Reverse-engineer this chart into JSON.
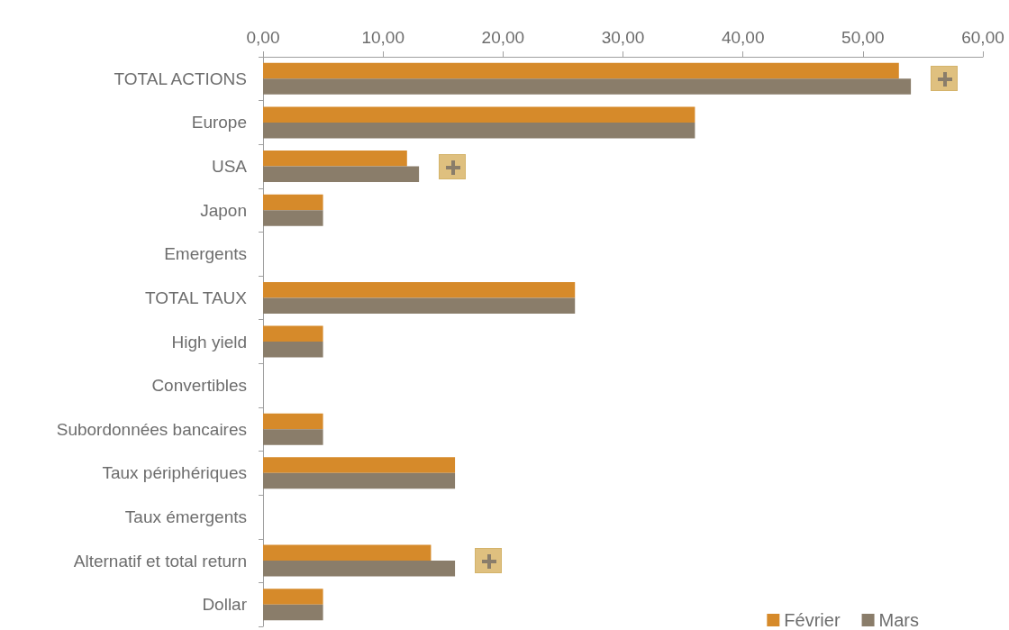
{
  "chart_data": {
    "type": "bar",
    "orientation": "horizontal",
    "categories": [
      "TOTAL ACTIONS",
      "Europe",
      "USA",
      "Japon",
      "Emergents",
      "TOTAL TAUX",
      "High yield",
      "Convertibles",
      "Subordonnées bancaires",
      "Taux périphériques",
      "Taux émergents",
      "Alternatif et total return",
      "Dollar"
    ],
    "series": [
      {
        "name": "Février",
        "color": "#d68a2a",
        "values": [
          53,
          36,
          12,
          5,
          0,
          26,
          5,
          0,
          5,
          16,
          0,
          14,
          5
        ]
      },
      {
        "name": "Mars",
        "color": "#8a7d6a",
        "values": [
          54,
          36,
          13,
          5,
          0,
          26,
          5,
          0,
          5,
          16,
          0,
          16,
          5
        ]
      }
    ],
    "xlim": [
      0,
      60
    ],
    "xticks": [
      {
        "value": 0,
        "label": "0,00"
      },
      {
        "value": 10,
        "label": "10,00"
      },
      {
        "value": 20,
        "label": "20,00"
      },
      {
        "value": 30,
        "label": "30,00"
      },
      {
        "value": 40,
        "label": "40,00"
      },
      {
        "value": 50,
        "label": "50,00"
      },
      {
        "value": 60,
        "label": "60,00"
      }
    ],
    "grid": false,
    "legend": "bottom right"
  }
}
